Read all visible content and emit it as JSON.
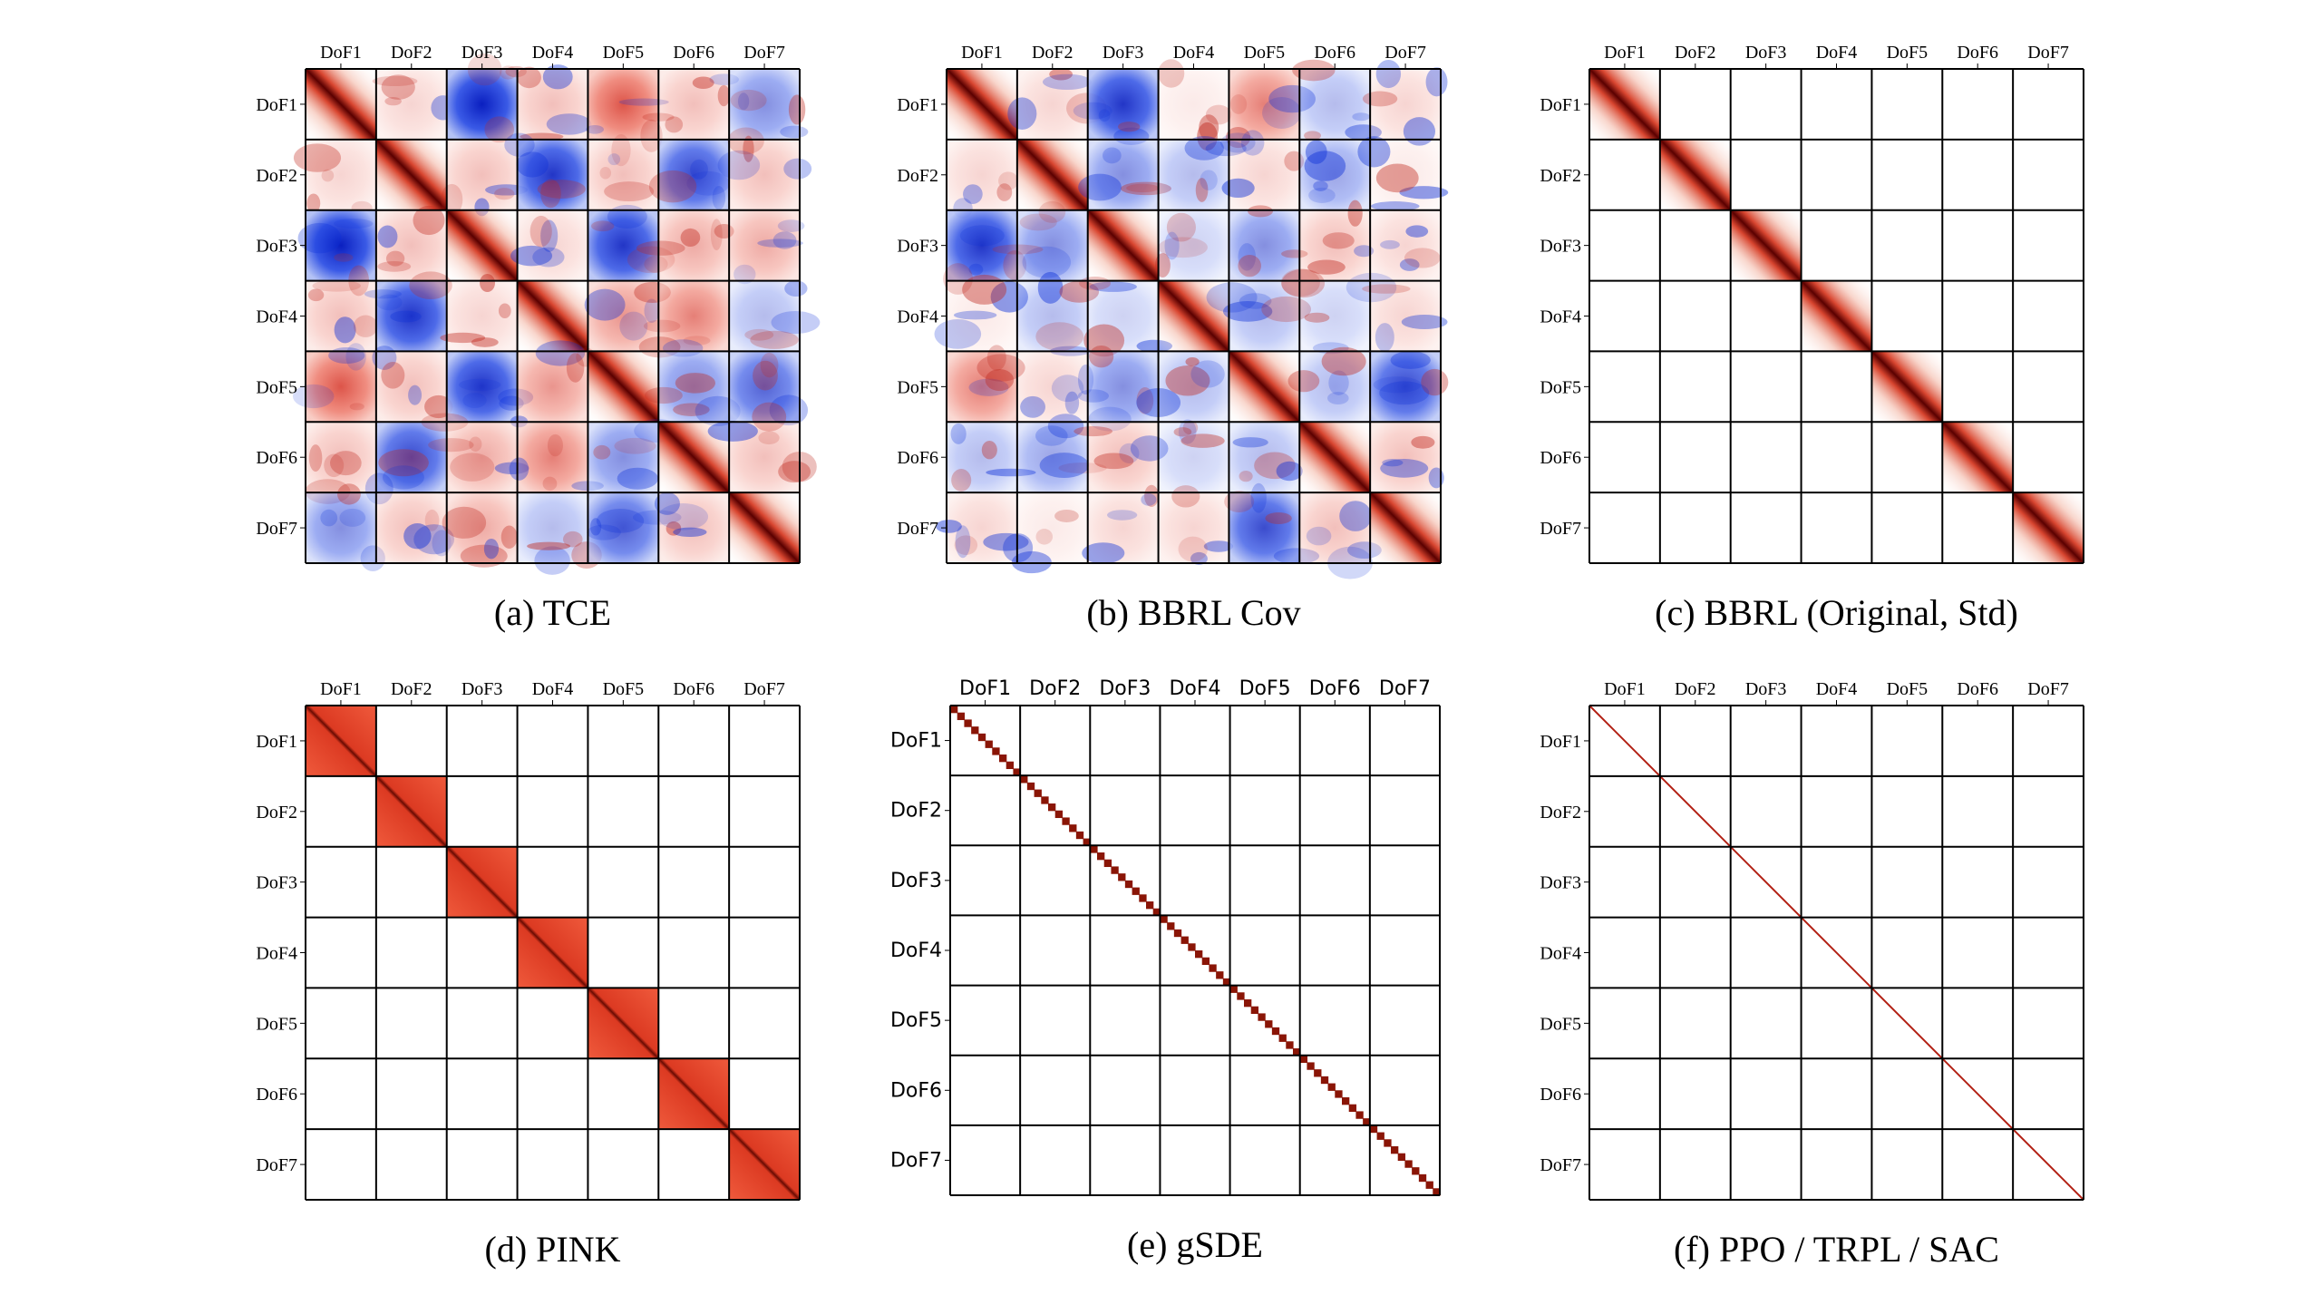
{
  "figure": {
    "colors": {
      "positive": "#c0281e",
      "negative": "#0b2fd8",
      "dark": "#5a0000",
      "neutral": "#ffffff",
      "grid": "#000000"
    }
  },
  "chart_data": [
    {
      "type": "heatmap",
      "caption": "(a) TCE",
      "pattern": "full-covariance",
      "xticklabels": [
        "DoF1",
        "DoF2",
        "DoF3",
        "DoF4",
        "DoF5",
        "DoF6",
        "DoF7"
      ],
      "yticklabels": [
        "DoF1",
        "DoF2",
        "DoF3",
        "DoF4",
        "DoF5",
        "DoF6",
        "DoF7"
      ],
      "block_sign": [
        [
          1,
          0.2,
          -1,
          0.3,
          0.8,
          0.3,
          -0.5
        ],
        [
          0.2,
          1,
          0.3,
          -0.9,
          0.3,
          -0.8,
          0.3
        ],
        [
          -1,
          0.3,
          1,
          0.2,
          -0.9,
          0.4,
          0.4
        ],
        [
          0.3,
          -0.9,
          0.2,
          1,
          0.5,
          0.6,
          -0.3
        ],
        [
          0.8,
          0.3,
          -0.9,
          0.5,
          1,
          -0.5,
          -0.7
        ],
        [
          0.3,
          -0.8,
          0.4,
          0.6,
          -0.5,
          1,
          0.3
        ],
        [
          -0.5,
          0.3,
          0.4,
          -0.3,
          -0.7,
          0.3,
          1
        ]
      ]
    },
    {
      "type": "heatmap",
      "caption": "(b) BBRL Cov",
      "pattern": "full-covariance",
      "xticklabels": [
        "DoF1",
        "DoF2",
        "DoF3",
        "DoF4",
        "DoF5",
        "DoF6",
        "DoF7"
      ],
      "yticklabels": [
        "DoF1",
        "DoF2",
        "DoF3",
        "DoF4",
        "DoF5",
        "DoF6",
        "DoF7"
      ],
      "block_sign": [
        [
          1,
          0.2,
          -0.9,
          0.1,
          0.6,
          -0.3,
          0.2
        ],
        [
          0.2,
          1,
          -0.5,
          -0.3,
          0.2,
          -0.4,
          0.1
        ],
        [
          -0.9,
          -0.5,
          1,
          -0.2,
          -0.5,
          0.3,
          0.2
        ],
        [
          0.1,
          -0.3,
          -0.2,
          1,
          -0.3,
          -0.2,
          0.2
        ],
        [
          0.6,
          0.2,
          -0.5,
          -0.3,
          1,
          -0.3,
          -0.8
        ],
        [
          -0.3,
          -0.4,
          0.3,
          -0.2,
          -0.3,
          1,
          0.3
        ],
        [
          0.2,
          0.1,
          0.2,
          0.2,
          -0.8,
          0.3,
          1
        ]
      ]
    },
    {
      "type": "heatmap",
      "caption": "(c) BBRL (Original, Std)",
      "pattern": "block-diagonal-smooth",
      "xticklabels": [
        "DoF1",
        "DoF2",
        "DoF3",
        "DoF4",
        "DoF5",
        "DoF6",
        "DoF7"
      ],
      "yticklabels": [
        "DoF1",
        "DoF2",
        "DoF3",
        "DoF4",
        "DoF5",
        "DoF6",
        "DoF7"
      ]
    },
    {
      "type": "heatmap",
      "caption": "(d) PINK",
      "pattern": "block-diagonal-flat",
      "xticklabels": [
        "DoF1",
        "DoF2",
        "DoF3",
        "DoF4",
        "DoF5",
        "DoF6",
        "DoF7"
      ],
      "yticklabels": [
        "DoF1",
        "DoF2",
        "DoF3",
        "DoF4",
        "DoF5",
        "DoF6",
        "DoF7"
      ]
    },
    {
      "type": "heatmap",
      "caption": "(e) gSDE",
      "pattern": "diagonal-steps",
      "xticklabels": [
        "DoF1",
        "DoF2",
        "DoF3",
        "DoF4",
        "DoF5",
        "DoF6",
        "DoF7"
      ],
      "yticklabels": [
        "DoF1",
        "DoF2",
        "DoF3",
        "DoF4",
        "DoF5",
        "DoF6",
        "DoF7"
      ]
    },
    {
      "type": "heatmap",
      "caption": "(f) PPO / TRPL / SAC",
      "pattern": "diagonal-line",
      "xticklabels": [
        "DoF1",
        "DoF2",
        "DoF3",
        "DoF4",
        "DoF5",
        "DoF6",
        "DoF7"
      ],
      "yticklabels": [
        "DoF1",
        "DoF2",
        "DoF3",
        "DoF4",
        "DoF5",
        "DoF6",
        "DoF7"
      ]
    }
  ]
}
